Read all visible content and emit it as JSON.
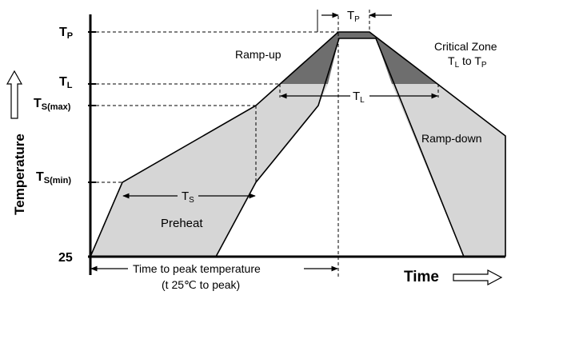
{
  "axes": {
    "y_label": "Temperature",
    "x_label": "Time"
  },
  "y_ticks": {
    "tp": {
      "main": "T",
      "sub": "P"
    },
    "tl": {
      "main": "T",
      "sub": "L"
    },
    "ts_max": {
      "main": "T",
      "sub": "S(max)"
    },
    "ts_min": {
      "main": "T",
      "sub": "S(min)"
    },
    "base": "25"
  },
  "annotations": {
    "ramp_up": "Ramp-up",
    "ramp_down": "Ramp-down",
    "preheat": "Preheat",
    "critical_zone_line1": "Critical Zone",
    "critical_zone_line2": {
      "t1": "T",
      "s1": "L",
      "to": " to ",
      "t2": "T",
      "s2": "P"
    },
    "tp_interval": {
      "main": "T",
      "sub": "P"
    },
    "tl_interval": {
      "main": "T",
      "sub": "L"
    },
    "ts_interval": {
      "main": "T",
      "sub": "S"
    },
    "time_to_peak_line1": "Time to peak temperature",
    "time_to_peak_line2": "(t 25℃ to peak)"
  },
  "colors": {
    "light_fill": "#d6d6d6",
    "dark_fill": "#6e6e6e",
    "line": "#000000"
  }
}
